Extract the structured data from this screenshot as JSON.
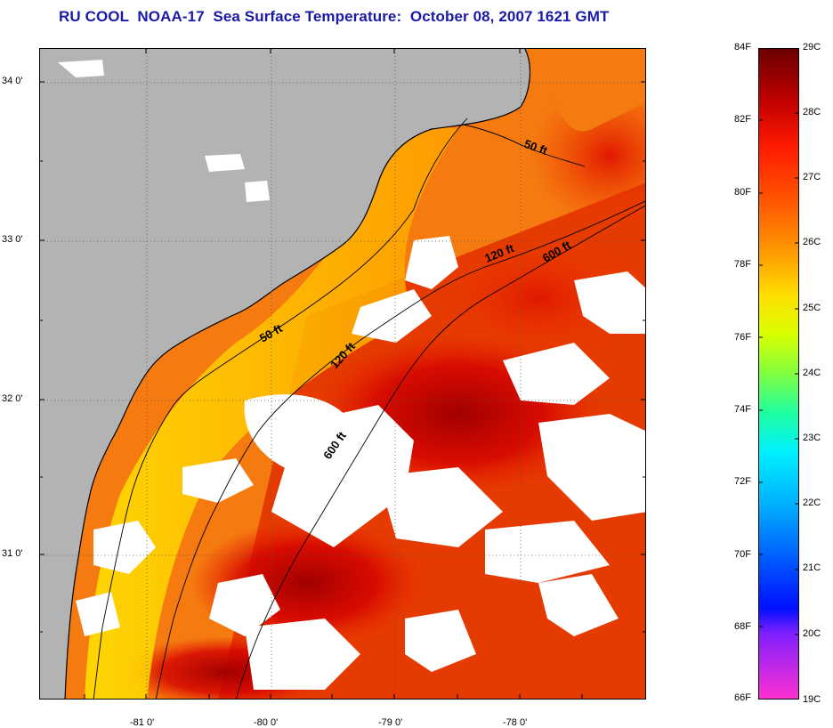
{
  "title": "RU COOL  NOAA-17  Sea Surface Temperature:  October 08, 2007 1621 GMT",
  "map": {
    "latitude_labels": [
      "34 0'",
      "33 0'",
      "32 0'",
      "31 0'"
    ],
    "longitude_labels": [
      "-81 0'",
      "-80 0'",
      "-79 0'",
      "-78 0'"
    ],
    "isobath_labels": [
      "50 ft",
      "50 ft",
      "120 ft",
      "120 ft",
      "600 ft",
      "600 ft"
    ],
    "colors": {
      "land": "#b3b3b3",
      "cloud": "#ffffff",
      "warm_water": "#ff6a00",
      "hot_water": "#c00000",
      "nearshore_water": "#ffd400"
    }
  },
  "colorbar": {
    "fahrenheit_labels": [
      "84F",
      "82F",
      "80F",
      "78F",
      "76F",
      "74F",
      "72F",
      "70F",
      "68F",
      "66F"
    ],
    "celsius_labels": [
      "29C",
      "28C",
      "27C",
      "26C",
      "25C",
      "24C",
      "23C",
      "22C",
      "21C",
      "20C",
      "19C"
    ],
    "f_range": [
      66,
      84
    ],
    "c_range": [
      19,
      29
    ]
  }
}
